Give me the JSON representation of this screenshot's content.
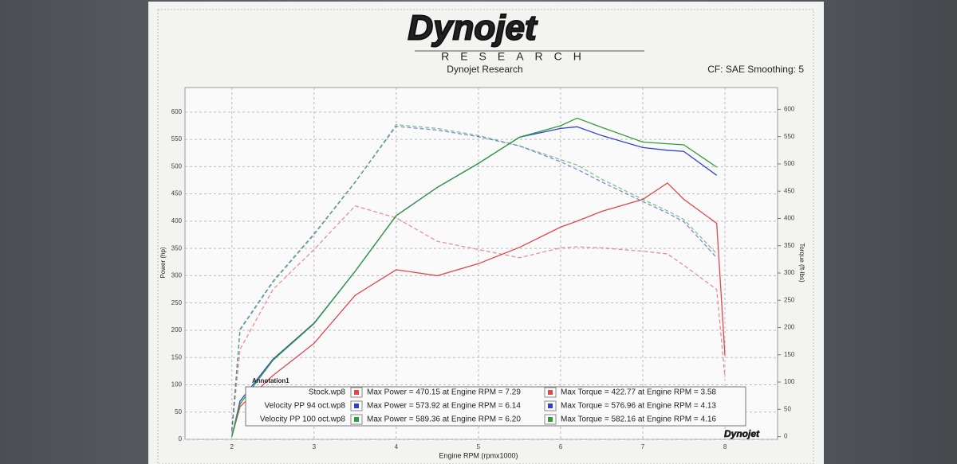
{
  "header": {
    "logo": "Dynojet",
    "logo_sub": "RESEARCH"
  },
  "chart_data": {
    "type": "line",
    "title": "Dynojet Research",
    "subtitle": "CF: SAE Smoothing: 5",
    "xlabel": "Engine RPM (rpmx1000)",
    "ylabel": "Power (hp)",
    "y2label": "Torque (ft-lbs)",
    "annotation": "Annotation1",
    "x": [
      2.0,
      2.1,
      2.5,
      3.0,
      3.5,
      4.0,
      4.5,
      5.0,
      5.5,
      6.0,
      6.2,
      6.5,
      7.0,
      7.3,
      7.5,
      7.9,
      8.0
    ],
    "xlim": [
      1.43,
      8.64
    ],
    "xticks": [
      2,
      3,
      4,
      5,
      6,
      7,
      8
    ],
    "ylim": [
      0,
      645
    ],
    "yticks": [
      0,
      50,
      100,
      150,
      200,
      250,
      300,
      350,
      400,
      450,
      500,
      550,
      600
    ],
    "y2lim": [
      -5,
      640
    ],
    "y2ticks": [
      0,
      50,
      100,
      150,
      200,
      250,
      300,
      350,
      400,
      450,
      500,
      550,
      600
    ],
    "grid": true,
    "series": [
      {
        "name": "Stock.wp8",
        "color": "#e0474c",
        "max_label": "Max Power = 470.15 at Engine RPM = 7.29",
        "values": [
          5,
          60,
          117,
          176,
          264,
          311,
          300,
          322,
          352,
          389,
          400,
          418,
          440,
          470,
          440,
          396,
          154
        ]
      },
      {
        "color": "#e0474c",
        "axis": "y2",
        "dashed": true,
        "max_label": "Max Torque = 422.77 at Engine RPM = 3.58",
        "values": [
          10,
          160,
          270,
          343,
          423,
          401,
          358,
          343,
          328,
          346,
          348,
          346,
          340,
          335,
          314,
          270,
          109
        ]
      },
      {
        "name": "Velocity PP 94 oct.wp8",
        "color": "#2f3fd6",
        "max_label": "Max Power = 573.92 at Engine RPM = 6.14",
        "values": [
          5,
          70,
          147,
          213,
          308,
          410,
          462,
          506,
          554,
          570,
          573,
          557,
          535,
          530,
          528,
          484,
          null
        ]
      },
      {
        "color": "#2f3fd6",
        "axis": "y2",
        "dashed": true,
        "max_label": "Max Torque = 576.96 at Engine RPM = 4.13",
        "values": [
          10,
          197,
          285,
          372,
          467,
          569,
          562,
          550,
          533,
          504,
          490,
          467,
          431,
          410,
          394,
          328,
          null
        ]
      },
      {
        "name": "Velocity PP 100 oct.wp8",
        "color": "#2e9e3a",
        "max_label": "Max Power = 589.36 at Engine RPM = 6.20",
        "values": [
          5,
          65,
          145,
          212,
          308,
          410,
          462,
          506,
          554,
          575,
          589,
          572,
          545,
          542,
          540,
          499,
          null
        ]
      },
      {
        "color": "#2e9e3a",
        "axis": "y2",
        "dashed": true,
        "max_label": "Max Torque = 582.16 at Engine RPM = 4.16",
        "values": [
          10,
          195,
          283,
          370,
          466,
          572,
          565,
          552,
          533,
          508,
          498,
          472,
          435,
          414,
          398,
          335,
          null
        ]
      }
    ]
  }
}
